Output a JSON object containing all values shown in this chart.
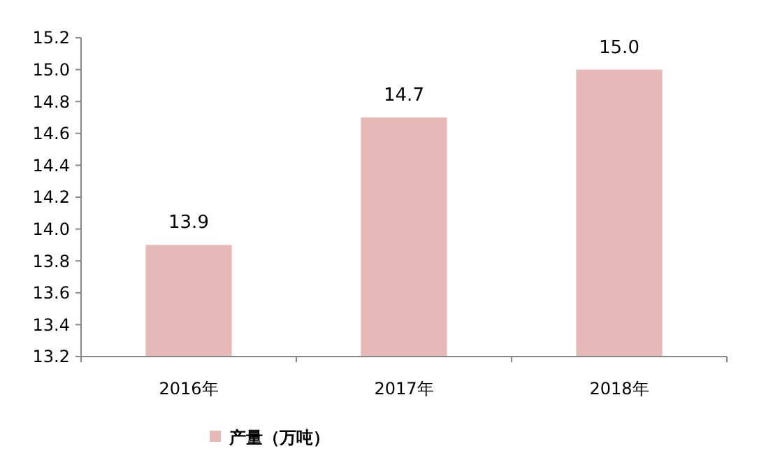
{
  "chart_data": {
    "type": "bar",
    "categories": [
      "2016年",
      "2017年",
      "2018年"
    ],
    "series": [
      {
        "name": "产量（万吨）",
        "color": "#e6b8b7",
        "values": [
          13.9,
          14.7,
          15.0
        ],
        "value_labels": [
          "13.9",
          "14.7",
          "15.0"
        ]
      }
    ],
    "ylim": [
      13.2,
      15.2
    ],
    "yticks": [
      13.2,
      13.4,
      13.6,
      13.8,
      {
        "value": 14,
        "label": "14.0"
      },
      14.2,
      14.4,
      14.6,
      14.8,
      {
        "value": 15,
        "label": "15.0"
      },
      15.2
    ],
    "legend": "bottom",
    "grid": false
  }
}
